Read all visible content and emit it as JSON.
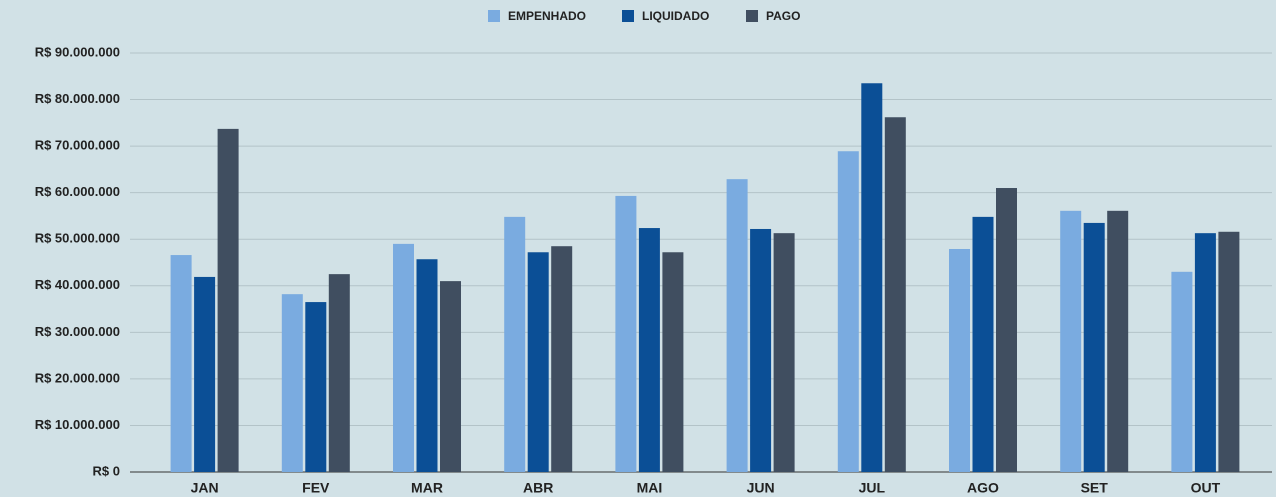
{
  "chart_data": {
    "type": "bar",
    "categories": [
      "JAN",
      "FEV",
      "MAR",
      "ABR",
      "MAI",
      "JUN",
      "JUL",
      "AGO",
      "SET",
      "OUT"
    ],
    "series": [
      {
        "name": "EMPENHADO",
        "color": "#7aabe0",
        "values": [
          46600000,
          38200000,
          49000000,
          54800000,
          59300000,
          62900000,
          68900000,
          47900000,
          56100000,
          43000000
        ]
      },
      {
        "name": "LIQUIDADO",
        "color": "#0b4f96",
        "values": [
          41900000,
          36500000,
          45700000,
          47200000,
          52400000,
          52200000,
          83500000,
          54800000,
          53500000,
          51300000
        ]
      },
      {
        "name": "PAGO",
        "color": "#404e60",
        "values": [
          73700000,
          42500000,
          41000000,
          48500000,
          47200000,
          51300000,
          76200000,
          61000000,
          56100000,
          51600000
        ]
      }
    ],
    "ylim": [
      0,
      90000000
    ],
    "yticks": [
      {
        "value": 0,
        "label": "R$ 0"
      },
      {
        "value": 10000000,
        "label": "R$ 10.000.000"
      },
      {
        "value": 20000000,
        "label": "R$ 20.000.000"
      },
      {
        "value": 30000000,
        "label": "R$ 30.000.000"
      },
      {
        "value": 40000000,
        "label": "R$ 40.000.000"
      },
      {
        "value": 50000000,
        "label": "R$ 50.000.000"
      },
      {
        "value": 60000000,
        "label": "R$ 60.000.000"
      },
      {
        "value": 70000000,
        "label": "R$ 70.000.000"
      },
      {
        "value": 80000000,
        "label": "R$ 80.000.000"
      },
      {
        "value": 90000000,
        "label": "R$ 90.000.000"
      }
    ],
    "grid": true,
    "legend": "top"
  }
}
